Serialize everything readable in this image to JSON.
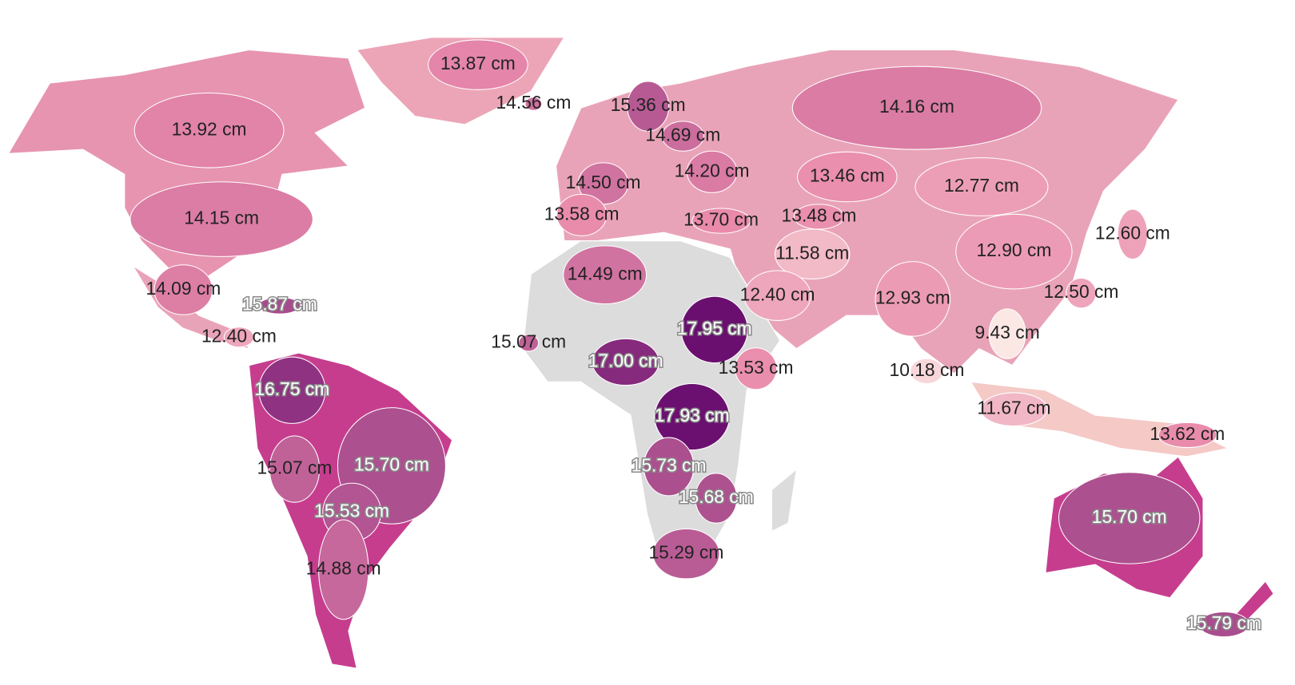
{
  "chart_data": {
    "type": "choropleth",
    "values": [
      13.87,
      14.56,
      15.36,
      14.16,
      13.92,
      14.69,
      14.2,
      14.5,
      13.46,
      12.77,
      14.15,
      13.58,
      13.7,
      13.48,
      12.6,
      11.58,
      12.9,
      14.49,
      14.09,
      12.4,
      12.93,
      12.5,
      15.87,
      12.4,
      9.43,
      15.07,
      17.95,
      17.0,
      13.53,
      10.18,
      16.75,
      11.67,
      17.93,
      13.62,
      15.7,
      15.07,
      15.73,
      15.68,
      15.53,
      15.7,
      15.29,
      14.88,
      15.79
    ],
    "value_labels": [
      "13.87 cm",
      "14.56 cm",
      "15.36 cm",
      "14.16 cm",
      "13.92 cm",
      "14.69 cm",
      "14.20 cm",
      "14.50 cm",
      "13.46 cm",
      "12.77 cm",
      "14.15 cm",
      "13.58 cm",
      "13.70 cm",
      "13.48 cm",
      "12.60 cm",
      "11.58 cm",
      "12.90 cm",
      "14.49 cm",
      "14.09 cm",
      "12.40 cm",
      "12.93 cm",
      "12.50 cm",
      "15.87 cm",
      "12.40 cm",
      "9.43 cm",
      "15.07 cm",
      "17.95 cm",
      "17.00 cm",
      "13.53 cm",
      "10.18 cm",
      "16.75 cm",
      "11.67 cm",
      "17.93 cm",
      "13.62 cm",
      "15.70 cm",
      "15.07 cm",
      "15.73 cm",
      "15.68 cm",
      "15.53 cm",
      "15.70 cm",
      "15.29 cm",
      "14.88 cm",
      "15.79 cm"
    ],
    "colors": [
      "#fbe8e4",
      "#e98aab",
      "#6a0f70"
    ]
  }
}
